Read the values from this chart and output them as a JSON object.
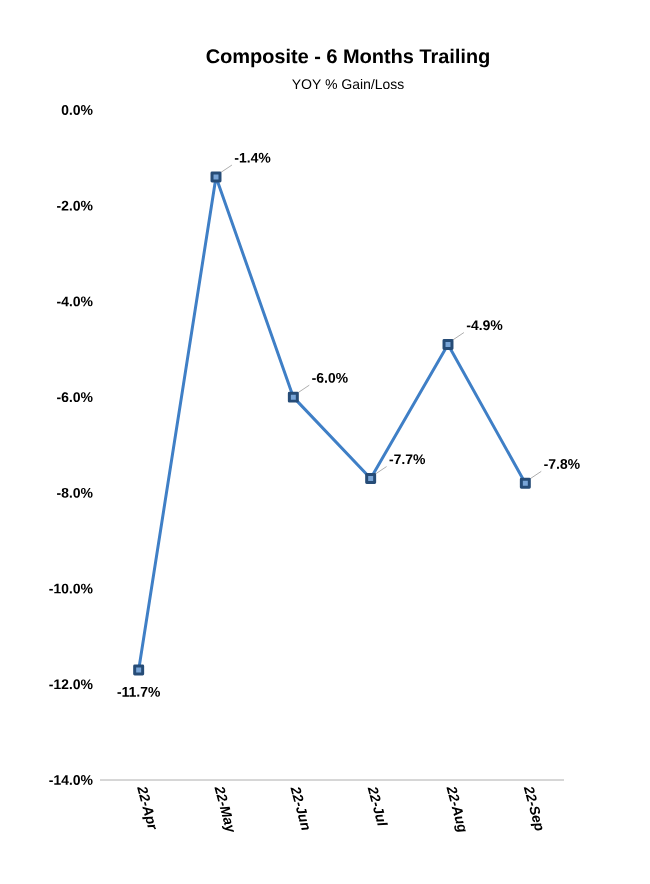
{
  "chart_data": {
    "type": "line",
    "title": "Composite - 6 Months Trailing",
    "subtitle": "YOY % Gain/Loss",
    "categories": [
      "22-Apr",
      "22-May",
      "22-Jun",
      "22-Jul",
      "22-Aug",
      "22-Sep"
    ],
    "series": [
      {
        "color": "#3f7fc6",
        "values": [
          -11.7,
          -1.4,
          -6.0,
          -7.7,
          -4.9,
          -7.8
        ],
        "value_labels": [
          "-11.7%",
          "-1.4%",
          "-6.0%",
          "-7.7%",
          "-4.9%",
          "-7.8%"
        ]
      }
    ],
    "ylim": [
      -14,
      0
    ],
    "yticks": [
      {
        "value": -14,
        "label": "-14.0%"
      },
      {
        "value": -12,
        "label": "-12.0%"
      },
      {
        "value": -10,
        "label": "-10.0%"
      },
      {
        "value": -8,
        "label": "-8.0%"
      },
      {
        "value": -6,
        "label": "-6.0%"
      },
      {
        "value": -4,
        "label": "-4.0%"
      },
      {
        "value": -2,
        "label": "-2.0%"
      },
      {
        "value": 0,
        "label": "0.0%"
      }
    ],
    "marker": "square",
    "line_style": "solid",
    "grid": false
  }
}
